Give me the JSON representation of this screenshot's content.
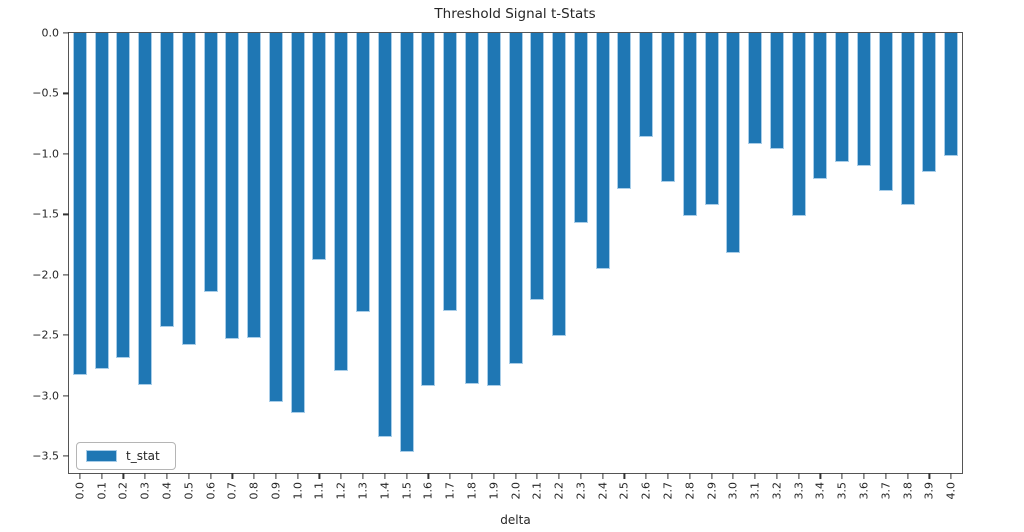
{
  "chart_data": {
    "type": "bar",
    "title": "Threshold Signal t-Stats",
    "xlabel": "delta",
    "ylabel": "",
    "grid": false,
    "legend": {
      "label": "t_stat",
      "position": "lower-left"
    },
    "ylim": [
      -3.64,
      0
    ],
    "yticks": {
      "values": [
        0.0,
        -0.5,
        -1.0,
        -1.5,
        -2.0,
        -2.5,
        -3.0,
        -3.5
      ],
      "labels": [
        "0.0",
        "−0.5",
        "−1.0",
        "−1.5",
        "−2.0",
        "−2.5",
        "−3.0",
        "−3.5"
      ]
    },
    "categories": [
      "0.0",
      "0.1",
      "0.2",
      "0.3",
      "0.4",
      "0.5",
      "0.6",
      "0.7",
      "0.8",
      "0.9",
      "1.0",
      "1.1",
      "1.2",
      "1.3",
      "1.4",
      "1.5",
      "1.6",
      "1.7",
      "1.8",
      "1.9",
      "2.0",
      "2.1",
      "2.2",
      "2.3",
      "2.4",
      "2.5",
      "2.6",
      "2.7",
      "2.8",
      "2.9",
      "3.0",
      "3.1",
      "3.2",
      "3.3",
      "3.4",
      "3.5",
      "3.6",
      "3.7",
      "3.8",
      "3.9",
      "4.0"
    ],
    "series": [
      {
        "name": "t_stat",
        "values": [
          -2.83,
          -2.78,
          -2.69,
          -2.91,
          -2.43,
          -2.58,
          -2.14,
          -2.53,
          -2.52,
          -3.05,
          -3.14,
          -1.88,
          -2.8,
          -2.31,
          -3.34,
          -3.47,
          -2.92,
          -2.3,
          -2.9,
          -2.92,
          -2.74,
          -2.21,
          -2.51,
          -1.57,
          -1.95,
          -1.29,
          -0.86,
          -1.23,
          -1.51,
          -1.42,
          -1.82,
          -0.92,
          -0.96,
          -1.51,
          -1.21,
          -1.07,
          -1.1,
          -1.31,
          -1.42,
          -1.15,
          -1.02
        ]
      }
    ],
    "colors": {
      "bar_fill": "#1f77b4",
      "bar_edge": "#a8cde8",
      "spine": "#555555",
      "text": "#262626"
    }
  }
}
